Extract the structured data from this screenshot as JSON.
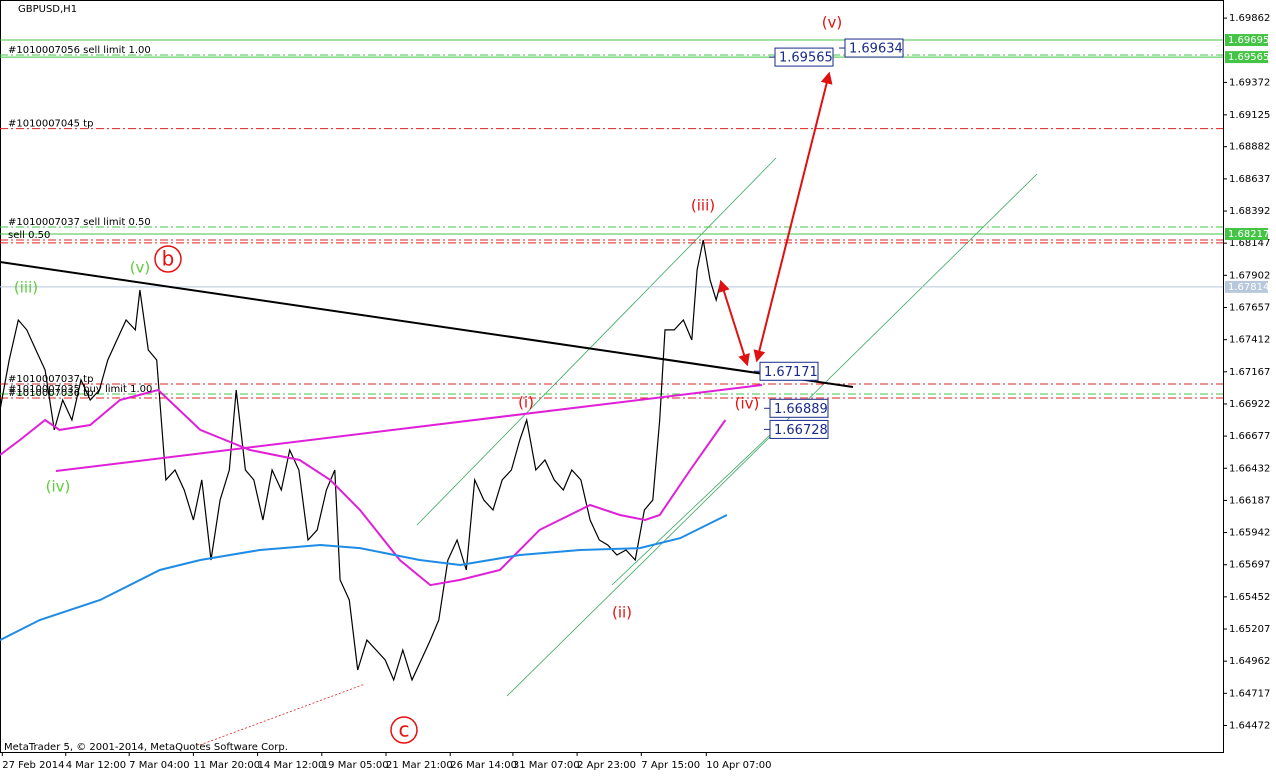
{
  "chart_data": {
    "type": "line",
    "title": "GBPUSD,H1",
    "footer": "MetaTrader 5, © 2001-2014, MetaQuotes Software Corp.",
    "xlim": [
      0,
      1600
    ],
    "ylim": [
      1.6427,
      1.7
    ],
    "xticks": [
      {
        "value": 3,
        "label": "27 Feb 2014"
      },
      {
        "value": 86,
        "label": "4 Mar 12:00"
      },
      {
        "value": 169,
        "label": "7 Mar 04:00"
      },
      {
        "value": 253,
        "label": "11 Mar 20:00"
      },
      {
        "value": 337,
        "label": "14 Mar 12:00"
      },
      {
        "value": 421,
        "label": "19 Mar 05:00"
      },
      {
        "value": 505,
        "label": "21 Mar 21:00"
      },
      {
        "value": 589,
        "label": "26 Mar 14:00"
      },
      {
        "value": 671,
        "label": "31 Mar 07:00"
      },
      {
        "value": 755,
        "label": "2 Apr 23:00"
      },
      {
        "value": 839,
        "label": "7 Apr 15:00"
      },
      {
        "value": 924,
        "label": "10 Apr 07:00"
      }
    ],
    "yticks": [
      1.69862,
      1.69372,
      1.69125,
      1.68882,
      1.68637,
      1.68392,
      1.68147,
      1.67902,
      1.67657,
      1.67412,
      1.67167,
      1.66922,
      1.66677,
      1.66432,
      1.66187,
      1.65942,
      1.65697,
      1.65452,
      1.65207,
      1.64962,
      1.64717,
      1.64472
    ],
    "series": [
      {
        "color": "#000000",
        "x": [
          0,
          12,
          24,
          35,
          47,
          59,
          71,
          82,
          94,
          106,
          118,
          130,
          141,
          153,
          165,
          177,
          183,
          194,
          205,
          217,
          229,
          241,
          253,
          264,
          276,
          288,
          300,
          309,
          321,
          332,
          344,
          356,
          368,
          379,
          391,
          403,
          415,
          427,
          438,
          445,
          457,
          468,
          480,
          492,
          504,
          515,
          527,
          539,
          551,
          563,
          574,
          586,
          598,
          610,
          621,
          633,
          645,
          657,
          669,
          680,
          689,
          701,
          713,
          725,
          737,
          748,
          760,
          772,
          784,
          795,
          807,
          819,
          831,
          843,
          854,
          863,
          870,
          882,
          894,
          905,
          912,
          920,
          929,
          937,
          942
        ],
        "values": [
          1.66876,
          1.67257,
          1.67562,
          1.67486,
          1.67333,
          1.67181,
          1.66724,
          1.66952,
          1.668,
          1.67105,
          1.66952,
          1.67028,
          1.67257,
          1.67409,
          1.67562,
          1.67486,
          1.6779,
          1.67333,
          1.67257,
          1.66343,
          1.66419,
          1.66266,
          1.66038,
          1.66343,
          1.65733,
          1.6619,
          1.66419,
          1.67028,
          1.66419,
          1.66343,
          1.66038,
          1.66419,
          1.66266,
          1.66571,
          1.66419,
          1.65885,
          1.65962,
          1.66266,
          1.66419,
          1.65581,
          1.65428,
          1.64895,
          1.65123,
          1.65047,
          1.64971,
          1.64819,
          1.65047,
          1.64819,
          1.64971,
          1.65123,
          1.65276,
          1.65733,
          1.65885,
          1.65657,
          1.66343,
          1.6619,
          1.66114,
          1.66343,
          1.66419,
          1.66647,
          1.668,
          1.66419,
          1.66495,
          1.66343,
          1.66266,
          1.66419,
          1.66343,
          1.66038,
          1.65885,
          1.65847,
          1.65771,
          1.65809,
          1.65733,
          1.66114,
          1.6619,
          1.668,
          1.67486,
          1.67486,
          1.67562,
          1.67409,
          1.67943,
          1.68171,
          1.67866,
          1.67714,
          1.67828
        ]
      },
      {
        "color": "#e020d8",
        "x": [
          0,
          26,
          59,
          78,
          118,
          157,
          207,
          262,
          327,
          392,
          432,
          471,
          523,
          563,
          602,
          654,
          706,
          772,
          811,
          844,
          863,
          903,
          949
        ],
        "values": [
          1.66533,
          1.66647,
          1.668,
          1.66724,
          1.66762,
          1.66952,
          1.67028,
          1.66724,
          1.66571,
          1.66495,
          1.66343,
          1.66114,
          1.65733,
          1.65542,
          1.65581,
          1.65657,
          1.65962,
          1.66152,
          1.66076,
          1.66038,
          1.66076,
          1.66419,
          1.668
        ]
      },
      {
        "color": "#1e8ce6",
        "x": [
          0,
          52,
          131,
          209,
          262,
          340,
          419,
          471,
          549,
          602,
          680,
          759,
          837,
          890,
          951
        ],
        "values": [
          1.65123,
          1.65276,
          1.65428,
          1.65657,
          1.65733,
          1.65809,
          1.65847,
          1.65824,
          1.65733,
          1.65695,
          1.65771,
          1.65809,
          1.65824,
          1.659,
          1.66076
        ]
      }
    ],
    "levels": [
      {
        "value": 1.69695,
        "color": "#44c444",
        "style": "solid",
        "box": true
      },
      {
        "value": 1.69581,
        "color": "#44c444",
        "style": "dashdot",
        "label": "#1010007056 sell limit 1.00"
      },
      {
        "value": 1.69565,
        "color": "#44c444",
        "style": "solid",
        "box": true
      },
      {
        "value": 1.6902,
        "color": "#e02020",
        "style": "dashdot",
        "label": "#1010007045 tp"
      },
      {
        "value": 1.6827,
        "color": "#44c444",
        "style": "dashdot",
        "label": "#1010007037 sell limit 0.50"
      },
      {
        "value": 1.68217,
        "color": "#44c444",
        "style": "solid",
        "box": true
      },
      {
        "value": 1.68171,
        "color": "#e02020",
        "style": "dashdot",
        "label": "sell 0.50"
      },
      {
        "value": 1.68149,
        "color": "#e02020",
        "style": "dashdot"
      },
      {
        "value": 1.67814,
        "color": "#b8c8dc",
        "style": "solid",
        "box": true
      },
      {
        "value": 1.67074,
        "color": "#e02020",
        "style": "dashdot",
        "label": "#1010007037 tp"
      },
      {
        "value": 1.66998,
        "color": "#44c444",
        "style": "dashdot",
        "label": "#1010007035 buy limit 1.00"
      },
      {
        "value": 1.66967,
        "color": "#e02020",
        "style": "dashdot",
        "label": "#1010007036 tp"
      }
    ],
    "price_labels": [
      1.69565,
      1.69634,
      1.67171,
      1.66889,
      1.66728
    ],
    "wave_labels": [
      {
        "text": "(v)",
        "color": "#5ccc3c"
      },
      {
        "text": "(iii)",
        "color": "#5ccc3c"
      },
      {
        "text": "(iv)",
        "color": "#5ccc3c"
      },
      {
        "text": "b",
        "color": "#e81010",
        "circled": true
      },
      {
        "text": "c",
        "color": "#e81010",
        "circled": true
      },
      {
        "text": "(i)",
        "color": "#e81010"
      },
      {
        "text": "(ii)",
        "color": "#e81010"
      },
      {
        "text": "(iii)",
        "color": "#e81010"
      },
      {
        "text": "(iv)",
        "color": "#e81010"
      },
      {
        "text": "(v)",
        "color": "#e81010"
      }
    ]
  }
}
